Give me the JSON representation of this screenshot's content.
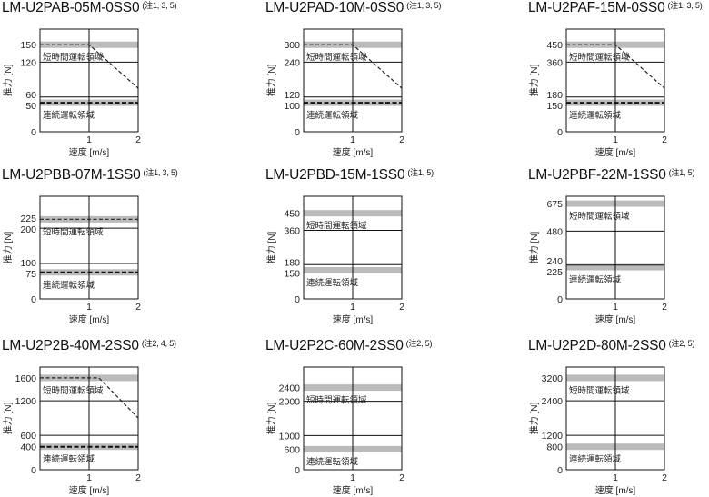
{
  "common": {
    "xlabel": "速度 [m/s]",
    "ylabel": "推力 [N]",
    "peak_region_label": "短時間運転領域",
    "cont_region_label": "連続運転領域",
    "x_ticks": [
      "1",
      "2"
    ],
    "band_color": "#bbbbbb"
  },
  "chart_data": [
    {
      "type": "line",
      "title": "LM-U2PAB-05M-0SS0",
      "note": "(注1, 3, 5)",
      "xlim": [
        0,
        2
      ],
      "ylim": [
        0,
        177
      ],
      "y_ticks": [
        0,
        50,
        60,
        120,
        150
      ],
      "grid_y": [
        60,
        120
      ],
      "peak": 150,
      "cont": 50,
      "peak_curve": [
        [
          0,
          150
        ],
        [
          1,
          150
        ],
        [
          2,
          75
        ]
      ],
      "cont_dashed": true
    },
    {
      "type": "line",
      "title": "LM-U2PAD-10M-0SS0",
      "note": "(注1, 3, 5)",
      "xlim": [
        0,
        2
      ],
      "ylim": [
        0,
        354
      ],
      "y_ticks": [
        0,
        100,
        120,
        240,
        300
      ],
      "grid_y": [
        120,
        240
      ],
      "peak": 300,
      "cont": 100,
      "peak_curve": [
        [
          0,
          300
        ],
        [
          1,
          300
        ],
        [
          2,
          150
        ]
      ],
      "cont_dashed": true
    },
    {
      "type": "line",
      "title": "LM-U2PAF-15M-0SS0",
      "note": "(注1, 3, 5)",
      "xlim": [
        0,
        2
      ],
      "ylim": [
        0,
        531
      ],
      "y_ticks": [
        0,
        150,
        180,
        360,
        450
      ],
      "grid_y": [
        180,
        360
      ],
      "peak": 450,
      "cont": 150,
      "peak_curve": [
        [
          0,
          450
        ],
        [
          1,
          450
        ],
        [
          2,
          225
        ]
      ],
      "cont_dashed": true
    },
    {
      "type": "line",
      "title": "LM-U2PBB-07M-1SS0",
      "note": "(注1, 3, 5)",
      "xlim": [
        0,
        2
      ],
      "ylim": [
        0,
        290
      ],
      "y_ticks": [
        0,
        75,
        100,
        200,
        225
      ],
      "grid_y": [
        100,
        200
      ],
      "peak": 225,
      "cont": 75,
      "peak_curve": [
        [
          0,
          225
        ],
        [
          2,
          225
        ]
      ],
      "cont_dashed": true
    },
    {
      "type": "line",
      "title": "LM-U2PBD-15M-1SS0",
      "note": "(注1, 5)",
      "xlim": [
        0,
        2
      ],
      "ylim": [
        0,
        539
      ],
      "y_ticks": [
        0,
        150,
        180,
        360,
        450
      ],
      "grid_y": [
        180,
        360
      ],
      "peak": 450,
      "cont": 150,
      "peak_curve": null,
      "cont_dashed": false
    },
    {
      "type": "line",
      "title": "LM-U2PBF-22M-1SS0",
      "note": "(注1, 5)",
      "xlim": [
        0,
        2
      ],
      "ylim": [
        0,
        727
      ],
      "y_ticks": [
        0,
        225,
        240,
        480,
        675
      ],
      "grid_y": [
        240,
        480
      ],
      "peak": 675,
      "cont": 225,
      "peak_curve": null,
      "cont_dashed": false
    },
    {
      "type": "line",
      "title": "LM-U2P2B-40M-2SS0",
      "note": "(注2, 4, 5)",
      "xlim": [
        0,
        2
      ],
      "ylim": [
        0,
        1788
      ],
      "y_ticks": [
        0,
        400,
        600,
        1200,
        1600
      ],
      "grid_y": [
        600,
        1200
      ],
      "peak": 1600,
      "cont": 400,
      "peak_curve": [
        [
          0,
          1600
        ],
        [
          1.2,
          1600
        ],
        [
          2,
          900
        ]
      ],
      "cont_dashed": true
    },
    {
      "type": "line",
      "title": "LM-U2P2C-60M-2SS0",
      "note": "(注2, 5)",
      "xlim": [
        0,
        2
      ],
      "ylim": [
        0,
        3000
      ],
      "y_ticks": [
        0,
        600,
        1000,
        2000,
        2400
      ],
      "grid_y": [
        1000,
        2000
      ],
      "peak": 2400,
      "cont": 600,
      "peak_curve": null,
      "cont_dashed": false
    },
    {
      "type": "line",
      "title": "LM-U2P2D-80M-2SS0",
      "note": "(注2, 5)",
      "xlim": [
        0,
        2
      ],
      "ylim": [
        0,
        3576
      ],
      "y_ticks": [
        0,
        800,
        1200,
        2400,
        3200
      ],
      "grid_y": [
        1200,
        2400
      ],
      "peak": 3200,
      "cont": 800,
      "peak_curve": null,
      "cont_dashed": false
    }
  ]
}
